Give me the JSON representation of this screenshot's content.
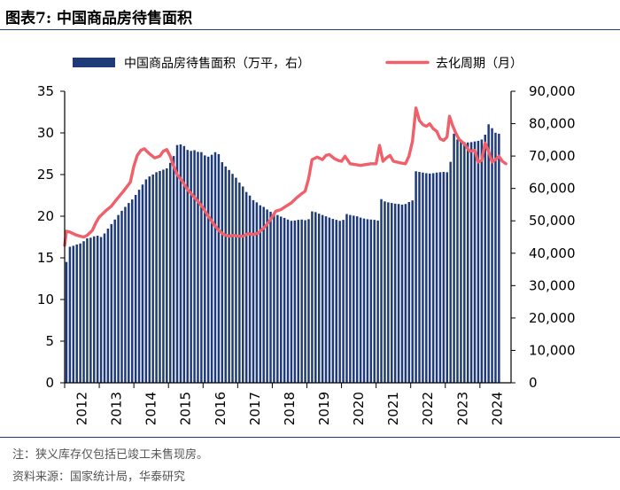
{
  "figure": {
    "title": "图表7:   中国商品房待售面积",
    "note": "注：狭义库存仅包括已竣工未售现房。",
    "source": "资料来源：国家统计局，华泰研究"
  },
  "colors": {
    "bar": "#1F3A78",
    "line": "#F0606A",
    "axis": "#000000",
    "rule": "#1F3A78"
  },
  "chart_data": {
    "type": "bar+line",
    "title": "中国商品房待售面积",
    "legend": {
      "position": "top",
      "bar_label": "中国商品房待售面积（万平，右）",
      "line_label": "去化周期（月）"
    },
    "x_tick_labels": [
      "2012",
      "2013",
      "2014",
      "2015",
      "2016",
      "2017",
      "2018",
      "2019",
      "2020",
      "2021",
      "2022",
      "2023",
      "2024"
    ],
    "x_range": [
      2012.0,
      2024.9
    ],
    "left_axis": {
      "label": "去化周期（月）",
      "min": 0,
      "max": 35,
      "ticks": [
        0,
        5,
        10,
        15,
        20,
        25,
        30,
        35
      ],
      "tick_labels": [
        "0",
        "5",
        "10",
        "15",
        "20",
        "25",
        "30",
        "35"
      ]
    },
    "right_axis": {
      "label": "中国商品房待售面积（万平）",
      "min": 0,
      "max": 90000,
      "ticks": [
        0,
        10000,
        20000,
        30000,
        40000,
        50000,
        60000,
        70000,
        80000,
        90000
      ],
      "tick_labels": [
        "0",
        "10,000",
        "20,000",
        "30,000",
        "40,000",
        "50,000",
        "60,000",
        "70,000",
        "80,000",
        "90,000"
      ]
    },
    "series": [
      {
        "name": "中国商品房待售面积（万平，右）",
        "axis": "right",
        "kind": "bar",
        "x": [
          2012.0,
          2012.1,
          2012.2,
          2012.3,
          2012.4,
          2012.5,
          2012.6,
          2012.7,
          2012.8,
          2012.9,
          2013.0,
          2013.1,
          2013.2,
          2013.3,
          2013.4,
          2013.5,
          2013.6,
          2013.7,
          2013.8,
          2013.9,
          2014.0,
          2014.1,
          2014.2,
          2014.3,
          2014.4,
          2014.5,
          2014.6,
          2014.7,
          2014.8,
          2014.9,
          2015.0,
          2015.1,
          2015.2,
          2015.3,
          2015.4,
          2015.5,
          2015.6,
          2015.7,
          2015.8,
          2015.9,
          2016.0,
          2016.1,
          2016.2,
          2016.3,
          2016.4,
          2016.5,
          2016.6,
          2016.7,
          2016.8,
          2016.9,
          2017.0,
          2017.1,
          2017.2,
          2017.3,
          2017.4,
          2017.5,
          2017.6,
          2017.7,
          2017.8,
          2017.9,
          2018.0,
          2018.1,
          2018.2,
          2018.3,
          2018.4,
          2018.5,
          2018.6,
          2018.7,
          2018.8,
          2018.9,
          2019.0,
          2019.1,
          2019.2,
          2019.3,
          2019.4,
          2019.5,
          2019.6,
          2019.7,
          2019.8,
          2019.9,
          2020.0,
          2020.1,
          2020.2,
          2020.3,
          2020.4,
          2020.5,
          2020.6,
          2020.7,
          2020.8,
          2020.9,
          2021.0,
          2021.1,
          2021.2,
          2021.3,
          2021.4,
          2021.5,
          2021.6,
          2021.7,
          2021.8,
          2021.9,
          2022.0,
          2022.1,
          2022.2,
          2022.3,
          2022.4,
          2022.5,
          2022.6,
          2022.7,
          2022.8,
          2022.9,
          2023.0,
          2023.1,
          2023.2,
          2023.3,
          2023.4,
          2023.5,
          2023.6,
          2023.7,
          2023.8,
          2023.9,
          2024.0,
          2024.1,
          2024.2,
          2024.3,
          2024.4,
          2024.5
        ],
        "values": [
          37300,
          42000,
          42300,
          42700,
          43000,
          43700,
          44600,
          44800,
          45200,
          45400,
          45000,
          46100,
          47600,
          49000,
          50400,
          51800,
          53100,
          54300,
          55500,
          56600,
          58000,
          59600,
          61200,
          62800,
          63700,
          64300,
          65000,
          65400,
          65800,
          66200,
          67900,
          70000,
          73400,
          73600,
          73100,
          71900,
          71600,
          71800,
          71300,
          71200,
          70200,
          69800,
          70400,
          71200,
          70600,
          68100,
          66800,
          65700,
          64500,
          63300,
          61800,
          60600,
          58900,
          57800,
          56400,
          55700,
          54800,
          54300,
          53500,
          52800,
          52000,
          51800,
          51300,
          50900,
          50400,
          50000,
          50100,
          50300,
          50400,
          50200,
          50500,
          52900,
          52700,
          52200,
          51800,
          51400,
          51000,
          50600,
          50300,
          50000,
          50300,
          52100,
          51800,
          51600,
          51400,
          51000,
          50700,
          50500,
          50400,
          50300,
          50100,
          56700,
          56000,
          55700,
          55500,
          55300,
          55200,
          55000,
          55200,
          55800,
          56300,
          65300,
          65100,
          64900,
          64700,
          64600,
          64700,
          64900,
          65000,
          65100,
          65000,
          68200,
          76900,
          75100,
          74500,
          74300,
          74200,
          74300,
          74500,
          74700,
          75100,
          76600,
          79800,
          78600,
          77200,
          76900
        ]
      },
      {
        "name": "去化周期（月）",
        "axis": "left",
        "kind": "line",
        "x": [
          2012.0,
          2012.05,
          2012.15,
          2012.3,
          2012.45,
          2012.55,
          2012.65,
          2012.8,
          2012.9,
          2013.0,
          2013.1,
          2013.2,
          2013.35,
          2013.5,
          2013.7,
          2013.9,
          2014.0,
          2014.1,
          2014.2,
          2014.3,
          2014.45,
          2014.6,
          2014.75,
          2014.85,
          2014.95,
          2015.05,
          2015.15,
          2015.25,
          2015.4,
          2015.55,
          2015.7,
          2015.85,
          2016.0,
          2016.15,
          2016.3,
          2016.45,
          2016.6,
          2016.75,
          2016.9,
          2017.0,
          2017.15,
          2017.3,
          2017.45,
          2017.6,
          2017.8,
          2017.95,
          2018.1,
          2018.25,
          2018.4,
          2018.55,
          2018.7,
          2018.85,
          2018.95,
          2019.05,
          2019.15,
          2019.3,
          2019.45,
          2019.55,
          2019.65,
          2019.8,
          2019.9,
          2020.0,
          2020.1,
          2020.25,
          2020.4,
          2020.55,
          2020.7,
          2020.85,
          2021.0,
          2021.1,
          2021.2,
          2021.3,
          2021.4,
          2021.5,
          2021.6,
          2021.7,
          2021.85,
          2021.95,
          2022.05,
          2022.15,
          2022.25,
          2022.35,
          2022.45,
          2022.55,
          2022.65,
          2022.75,
          2022.85,
          2022.95,
          2023.05,
          2023.12,
          2023.2,
          2023.3,
          2023.4,
          2023.55,
          2023.7,
          2023.85,
          2023.95,
          2024.05,
          2024.15,
          2024.25,
          2024.35,
          2024.45,
          2024.55,
          2024.65,
          2024.75
        ],
        "values": [
          16.5,
          18.2,
          18.1,
          17.8,
          17.6,
          17.5,
          17.7,
          18.3,
          19.2,
          19.9,
          20.3,
          20.7,
          21.2,
          22.0,
          23.0,
          24.1,
          26.0,
          27.3,
          27.9,
          28.1,
          27.5,
          27.0,
          27.2,
          27.8,
          28.0,
          27.2,
          26.0,
          25.0,
          24.2,
          23.2,
          22.5,
          21.8,
          21.0,
          20.0,
          19.1,
          18.3,
          17.8,
          17.6,
          17.7,
          17.6,
          17.6,
          17.9,
          17.8,
          18.0,
          18.8,
          19.6,
          20.6,
          20.8,
          21.2,
          21.6,
          22.2,
          22.7,
          23.0,
          24.5,
          26.8,
          27.1,
          26.8,
          27.3,
          27.4,
          26.9,
          26.7,
          26.6,
          27.2,
          26.3,
          26.2,
          26.1,
          26.2,
          26.3,
          26.3,
          28.5,
          26.6,
          27.0,
          27.3,
          26.6,
          26.5,
          26.4,
          26.3,
          27.2,
          29.0,
          33.0,
          31.5,
          31.0,
          30.8,
          31.1,
          30.5,
          30.2,
          29.3,
          29.1,
          29.5,
          32.0,
          31.0,
          30.0,
          29.2,
          28.7,
          27.8,
          27.9,
          26.5,
          26.7,
          28.8,
          27.8,
          26.5,
          26.8,
          27.2,
          26.6,
          26.3
        ]
      }
    ]
  }
}
